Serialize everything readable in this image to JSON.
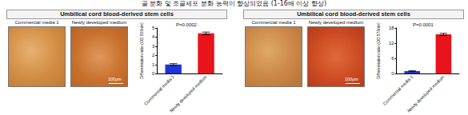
{
  "caption": "골 분화 및 조골세포 분화 능력이 향상되었음 (1-16배 이상 향상)",
  "panels": [
    {
      "title": "Umbilical cord blood-derived stem cells",
      "images": [
        "Commercial media 1",
        "Newly developed medium"
      ],
      "scale_bar": "100μm"
    },
    {
      "title": "Umbilical cord blood-derived stem cells",
      "images": [
        "Commercial media 1",
        "Newly developed medium"
      ],
      "scale_bar": "100μm"
    }
  ],
  "chart_data": [
    {
      "type": "bar",
      "annotation": "P=0.0002",
      "y_label": "Differentiation ratio (OD 500nm)",
      "categories": [
        "Commercial media 1",
        "Newly developed medium"
      ],
      "values": [
        1.0,
        4.4
      ],
      "error": [
        0.1,
        0.15
      ],
      "colors": [
        "#1f35d6",
        "#e8131b"
      ],
      "ylim": [
        0,
        5
      ],
      "yticks": [
        0,
        1,
        2,
        3,
        4,
        5
      ]
    },
    {
      "type": "bar",
      "annotation": "P=0.0001",
      "y_label": "Differentiation ratio (OD 570nm)",
      "categories": [
        "Commercial media 1",
        "Newly developed medium"
      ],
      "values": [
        1.0,
        15.5
      ],
      "error": [
        0.2,
        0.4
      ],
      "colors": [
        "#1f35d6",
        "#e8131b"
      ],
      "ylim": [
        0,
        18
      ],
      "yticks": [
        0,
        6,
        12,
        18
      ]
    }
  ]
}
